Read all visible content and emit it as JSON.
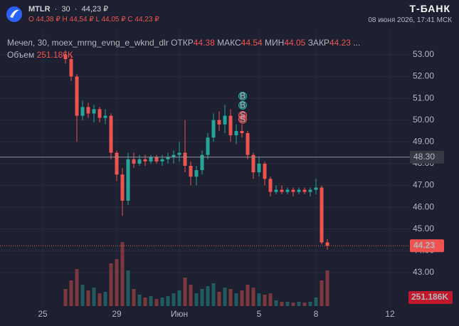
{
  "chart_data": {
    "type": "candlestick",
    "header": {
      "symbol": "MTLR",
      "interval": "30",
      "price": "44,23 ₽",
      "ohlc": [
        "O 44,38 ₽",
        "H 44,54 ₽",
        "L 44,05 ₽",
        "C 44,23 ₽"
      ],
      "brand": "Т-БАНК",
      "datetime": "08 июня 2026, 17:41 МСК"
    },
    "name": "Мечел, 30, moex_mrng_evng_e_wknd_dlr",
    "legend_labels": {
      "open": "ОТКР",
      "high": "МАКС",
      "low": "МИН",
      "close": "ЗАКР",
      "more": "..."
    },
    "up_color": "#26a69a",
    "down_color": "#ef5350",
    "categories": [
      null,
      null,
      null,
      null,
      null,
      null,
      null,
      "25",
      null,
      null,
      null,
      null,
      null,
      null,
      null,
      null,
      null,
      null,
      null,
      null,
      "29",
      null,
      null,
      null,
      null,
      null,
      null,
      null,
      null,
      null,
      null,
      "Июн",
      null,
      null,
      null,
      null,
      null,
      null,
      null,
      null,
      null,
      null,
      null,
      null,
      null,
      "5",
      null,
      null,
      null,
      null,
      null,
      null,
      null,
      null,
      null,
      "8",
      null,
      null,
      null,
      null,
      null,
      null,
      null,
      null,
      null,
      null,
      null,
      null,
      "12",
      null,
      null,
      null
    ],
    "open": [
      null,
      null,
      null,
      null,
      null,
      null,
      null,
      null,
      null,
      null,
      null,
      53.0,
      52.8,
      52.0,
      50.2,
      50.6,
      50.3,
      50.5,
      50.1,
      50.2,
      48.5,
      47.5,
      46.3,
      48.2,
      48.0,
      48.2,
      48.1,
      48.3,
      48.1,
      48.2,
      48.3,
      48.4,
      48.5,
      47.9,
      47.4,
      47.7,
      48.4,
      49.2,
      50.0,
      49.8,
      50.2,
      49.3,
      49.5,
      49.4,
      48.4,
      47.6,
      48.0,
      47.3,
      46.7,
      46.8,
      46.7,
      46.8,
      46.7,
      46.8,
      46.7,
      46.8,
      46.9,
      44.38,
      null,
      null,
      null,
      null,
      null,
      null,
      null,
      null,
      null,
      null,
      null,
      null,
      null,
      null
    ],
    "high": [
      null,
      null,
      null,
      null,
      null,
      null,
      null,
      null,
      null,
      null,
      null,
      53.2,
      53.0,
      52.1,
      50.9,
      50.8,
      50.7,
      50.6,
      50.5,
      50.3,
      48.6,
      47.8,
      48.5,
      48.5,
      48.4,
      48.4,
      48.4,
      48.4,
      48.4,
      48.5,
      48.6,
      49.0,
      50.0,
      48.1,
      47.9,
      48.6,
      49.4,
      50.3,
      50.4,
      50.7,
      50.5,
      49.8,
      49.8,
      49.5,
      48.5,
      48.3,
      48.1,
      47.4,
      47.0,
      47.0,
      46.9,
      46.9,
      46.9,
      46.9,
      46.9,
      47.3,
      47.0,
      44.54,
      null,
      null,
      null,
      null,
      null,
      null,
      null,
      null,
      null,
      null,
      null,
      null,
      null,
      null
    ],
    "low": [
      null,
      null,
      null,
      null,
      null,
      null,
      null,
      null,
      null,
      null,
      null,
      52.6,
      51.8,
      49.0,
      50.0,
      50.1,
      49.9,
      49.9,
      49.8,
      48.2,
      47.2,
      45.6,
      46.1,
      47.8,
      47.9,
      47.9,
      48.0,
      48.0,
      47.9,
      48.0,
      48.0,
      48.1,
      47.6,
      47.0,
      47.0,
      47.5,
      48.2,
      49.0,
      49.5,
      49.4,
      49.0,
      48.9,
      49.2,
      48.2,
      47.3,
      47.4,
      47.0,
      46.5,
      46.6,
      46.6,
      46.6,
      46.5,
      46.6,
      46.6,
      46.5,
      46.6,
      44.3,
      44.05,
      null,
      null,
      null,
      null,
      null,
      null,
      null,
      null,
      null,
      null,
      null,
      null,
      null,
      null
    ],
    "close": [
      null,
      null,
      null,
      null,
      null,
      null,
      null,
      null,
      null,
      null,
      null,
      52.8,
      52.0,
      50.2,
      50.6,
      50.3,
      50.5,
      50.1,
      50.2,
      48.5,
      47.5,
      46.3,
      48.2,
      48.0,
      48.2,
      48.1,
      48.3,
      48.1,
      48.2,
      48.3,
      48.4,
      48.5,
      47.9,
      47.4,
      47.7,
      48.4,
      49.2,
      50.0,
      49.8,
      50.2,
      49.3,
      49.5,
      49.4,
      48.4,
      47.6,
      48.0,
      47.3,
      46.7,
      46.8,
      46.7,
      46.8,
      46.7,
      46.8,
      46.7,
      46.8,
      46.9,
      44.38,
      44.23,
      null,
      null,
      null,
      null,
      null,
      null,
      null,
      null,
      null,
      null,
      null,
      null,
      null,
      null
    ],
    "volume": {
      "name": "Объем",
      "values": [
        null,
        null,
        null,
        null,
        null,
        null,
        null,
        null,
        null,
        null,
        null,
        120000,
        180000,
        260000,
        150000,
        110000,
        130000,
        90000,
        100000,
        300000,
        330000,
        450000,
        250000,
        120000,
        80000,
        60000,
        70000,
        50000,
        60000,
        70000,
        90000,
        110000,
        200000,
        150000,
        90000,
        120000,
        140000,
        160000,
        100000,
        130000,
        120000,
        90000,
        110000,
        150000,
        130000,
        90000,
        80000,
        90000,
        40000,
        30000,
        30000,
        25000,
        30000,
        25000,
        30000,
        60000,
        180000,
        251186,
        null,
        null,
        null,
        null,
        null,
        null,
        null,
        null,
        null,
        null,
        null,
        null,
        null,
        null
      ],
      "value_labels": [
        null,
        null,
        null,
        null,
        null,
        null,
        null,
        null,
        null,
        null,
        null,
        null,
        null,
        null,
        null,
        null,
        null,
        null,
        null,
        null,
        null,
        null,
        null,
        null,
        null,
        null,
        null,
        null,
        null,
        null,
        null,
        null,
        null,
        null,
        null,
        null,
        null,
        null,
        null,
        null,
        null,
        null,
        null,
        null,
        null,
        null,
        null,
        null,
        null,
        null,
        null,
        null,
        null,
        null,
        null,
        null,
        null,
        "251.186K",
        null,
        null,
        null,
        null,
        null,
        null,
        null,
        null,
        null,
        null,
        null,
        null,
        null,
        null
      ]
    },
    "ylim": [
      41.46,
      54.14
    ],
    "yticks": [
      {
        "value": 43,
        "label": "43.00"
      },
      {
        "value": 44,
        "label": "44.00"
      },
      {
        "value": 45,
        "label": "45.00"
      },
      {
        "value": 46,
        "label": "46.00"
      },
      {
        "value": 47,
        "label": "47.00"
      },
      {
        "value": 48,
        "label": "48.00"
      },
      {
        "value": 49,
        "label": "49.00"
      },
      {
        "value": 50,
        "label": "50.00"
      },
      {
        "value": 51,
        "label": "51.00"
      },
      {
        "value": 52,
        "label": "52.00"
      },
      {
        "value": 53,
        "label": "53.00"
      }
    ],
    "crosshair": {
      "value": 48.3,
      "label": "48.30"
    },
    "markers": [
      {
        "label": "B",
        "value": 51.1,
        "color": "#26a69a"
      },
      {
        "label": "B",
        "value": 50.68,
        "color": "#26a69a"
      },
      {
        "label": "S",
        "value": 50.22,
        "color": "#ef5350"
      },
      {
        "label": "S",
        "value": 50.03,
        "color": "#ef5350"
      }
    ],
    "grid": true
  }
}
